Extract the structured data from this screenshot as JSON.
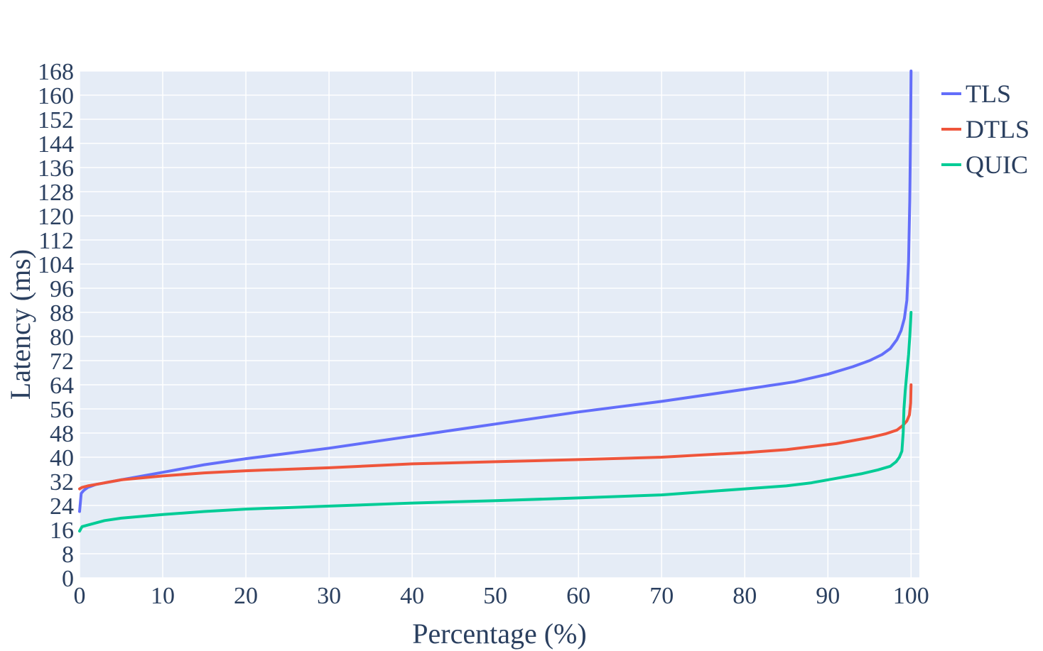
{
  "chart_data": {
    "type": "line",
    "title": "",
    "xlabel": "Percentage (%)",
    "ylabel": "Latency (ms)",
    "xlim": [
      0,
      101
    ],
    "ylim": [
      0,
      168
    ],
    "xticks": [
      0,
      10,
      20,
      30,
      40,
      50,
      60,
      70,
      80,
      90,
      100
    ],
    "yticks": [
      0,
      8,
      16,
      24,
      32,
      40,
      48,
      56,
      64,
      72,
      80,
      88,
      96,
      104,
      112,
      120,
      128,
      136,
      144,
      152,
      160,
      168
    ],
    "grid": true,
    "legend_position": "top-right",
    "plot_background": "#e5ecf6",
    "series": [
      {
        "name": "TLS",
        "color": "#636efa",
        "x": [
          0,
          0.2,
          0.5,
          1,
          2,
          5,
          10,
          15,
          20,
          30,
          40,
          50,
          60,
          70,
          80,
          86,
          90,
          93,
          95,
          96.5,
          97.5,
          98.3,
          98.8,
          99.2,
          99.5,
          99.7,
          99.85,
          99.95,
          100
        ],
        "y": [
          22,
          28,
          29,
          30,
          31,
          32.5,
          35,
          37.5,
          39.5,
          43,
          47,
          51,
          55,
          58.5,
          62.5,
          65,
          67.5,
          70,
          72,
          74,
          76,
          79,
          82,
          86,
          92,
          105,
          125,
          150,
          168
        ]
      },
      {
        "name": "DTLS",
        "color": "#ef553b",
        "x": [
          0,
          0.3,
          1,
          2,
          5,
          10,
          15,
          20,
          30,
          40,
          50,
          60,
          70,
          80,
          85,
          88,
          91,
          93,
          95,
          97,
          98.3,
          99,
          99.5,
          99.8,
          99.95,
          100
        ],
        "y": [
          29.5,
          30,
          30.5,
          31,
          32.5,
          33.8,
          34.8,
          35.5,
          36.5,
          37.8,
          38.5,
          39.2,
          40,
          41.5,
          42.5,
          43.5,
          44.5,
          45.5,
          46.5,
          47.8,
          49,
          50.5,
          52,
          54,
          58,
          64
        ]
      },
      {
        "name": "QUIC",
        "color": "#00cc96",
        "x": [
          0,
          0.3,
          1,
          3,
          5,
          10,
          15,
          20,
          30,
          40,
          50,
          60,
          70,
          80,
          85,
          88,
          91,
          94,
          96,
          97.5,
          98.2,
          98.6,
          98.9,
          99.05,
          99.15,
          99.3,
          99.5,
          99.7,
          99.85,
          100
        ],
        "y": [
          15.5,
          17,
          17.5,
          19,
          19.8,
          21,
          22,
          22.8,
          23.8,
          24.8,
          25.6,
          26.5,
          27.5,
          29.5,
          30.5,
          31.5,
          33,
          34.5,
          35.8,
          37,
          38.5,
          40,
          42,
          48,
          56,
          62,
          68,
          74,
          80,
          88
        ]
      }
    ]
  }
}
